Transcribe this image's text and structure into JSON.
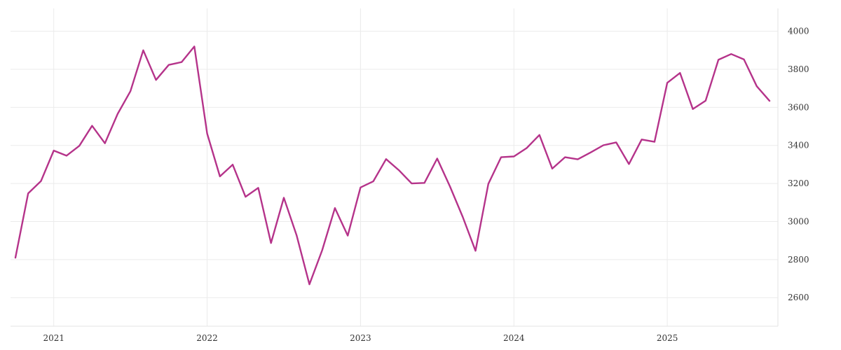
{
  "chart_data": {
    "type": "line",
    "title": "",
    "xlabel": "",
    "ylabel": "",
    "grid": true,
    "line_color": "#b5338a",
    "xlim": [
      "2020-10",
      "2025-09"
    ],
    "ylim": [
      2450,
      4120
    ],
    "y_ticks": [
      2600,
      2800,
      3000,
      3200,
      3400,
      3600,
      3800,
      4000
    ],
    "y_tick_labels": [
      "2600",
      "2800",
      "3000",
      "3200",
      "3400",
      "3600",
      "3800",
      "4000"
    ],
    "x_ticks": [
      "2021-01",
      "2022-01",
      "2023-01",
      "2024-01",
      "2025-01"
    ],
    "x_tick_labels": [
      "2021",
      "2022",
      "2023",
      "2024",
      "2025"
    ],
    "series": [
      {
        "x": [
          "2020-10",
          "2020-11",
          "2020-12",
          "2021-01",
          "2021-02",
          "2021-03",
          "2021-04",
          "2021-05",
          "2021-06",
          "2021-07",
          "2021-08",
          "2021-09",
          "2021-10",
          "2021-11",
          "2021-12",
          "2022-01",
          "2022-02",
          "2022-03",
          "2022-04",
          "2022-05",
          "2022-06",
          "2022-07",
          "2022-08",
          "2022-09",
          "2022-10",
          "2022-11",
          "2022-12",
          "2023-01",
          "2023-02",
          "2023-03",
          "2023-04",
          "2023-05",
          "2023-06",
          "2023-07",
          "2023-08",
          "2023-09",
          "2023-10",
          "2023-11",
          "2023-12",
          "2024-01",
          "2024-02",
          "2024-03",
          "2024-04",
          "2024-05",
          "2024-06",
          "2024-07",
          "2024-08",
          "2024-09",
          "2024-10",
          "2024-11",
          "2024-12",
          "2025-01",
          "2025-02",
          "2025-03",
          "2025-04",
          "2025-05",
          "2025-06",
          "2025-07",
          "2025-08",
          "2025-09"
        ],
        "values": [
          2810,
          3148,
          3213,
          3373,
          3346,
          3398,
          3503,
          3411,
          3566,
          3685,
          3900,
          3744,
          3823,
          3838,
          3920,
          3462,
          3237,
          3299,
          3130,
          3177,
          2887,
          3125,
          2928,
          2670,
          2849,
          3071,
          2926,
          3179,
          3211,
          3328,
          3270,
          3200,
          3203,
          3331,
          3184,
          3024,
          2846,
          3198,
          3338,
          3342,
          3386,
          3455,
          3278,
          3338,
          3327,
          3363,
          3401,
          3416,
          3302,
          3431,
          3419,
          3729,
          3781,
          3591,
          3635,
          3850,
          3880,
          3852,
          3711,
          3634
        ]
      }
    ]
  }
}
